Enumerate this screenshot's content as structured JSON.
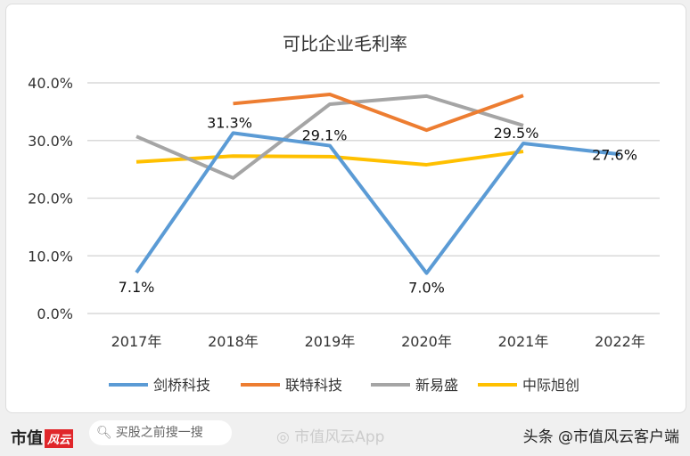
{
  "chart_data": {
    "type": "line",
    "title": "可比企业毛利率",
    "categories": [
      "2017年",
      "2018年",
      "2019年",
      "2020年",
      "2021年",
      "2022年"
    ],
    "ylim": [
      0,
      40
    ],
    "yticks": [
      "0.0%",
      "10.0%",
      "20.0%",
      "30.0%",
      "40.0%"
    ],
    "grid": true,
    "legend_position": "bottom",
    "series": [
      {
        "name": "剑桥科技",
        "color": "#5b9bd5",
        "values": [
          7.1,
          31.3,
          29.1,
          7.0,
          29.5,
          27.6
        ],
        "labels": [
          "7.1%",
          "31.3%",
          "29.1%",
          "7.0%",
          "29.5%",
          "27.6%"
        ]
      },
      {
        "name": "联特科技",
        "color": "#ed7d31",
        "values": [
          null,
          36.4,
          38.0,
          31.8,
          37.8,
          null
        ]
      },
      {
        "name": "新易盛",
        "color": "#a5a5a5",
        "values": [
          30.7,
          23.5,
          36.3,
          37.7,
          32.6,
          null
        ]
      },
      {
        "name": "中际旭创",
        "color": "#ffc000",
        "values": [
          26.3,
          27.3,
          27.2,
          25.8,
          28.1,
          null
        ]
      }
    ]
  },
  "footer": {
    "brand": "市值",
    "brand_logo": "风云",
    "search_placeholder": "买股之前搜一搜",
    "weibo": "市值风云App",
    "credit": "头条 @市值风云客户端"
  }
}
